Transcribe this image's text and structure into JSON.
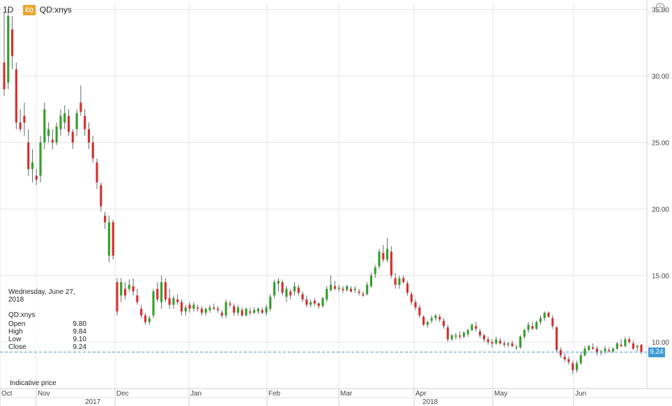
{
  "toolbar": {
    "interval": "1D",
    "badge": "EQ",
    "symbol": "QD:xnys",
    "clock_icon": "clock-icon"
  },
  "tooltip": {
    "date": "Wednesday, June 27, 2018",
    "symbol": "QD:xnys",
    "rows": [
      {
        "label": "Open",
        "value": "9.80"
      },
      {
        "label": "High",
        "value": "9.84"
      },
      {
        "label": "Low",
        "value": "9.10"
      },
      {
        "label": "Close",
        "value": "9.24"
      }
    ]
  },
  "footer_note": "Indicative price",
  "last_price_label": "9.24",
  "colors": {
    "up": "#33a02c",
    "down": "#d62f2f",
    "grid": "#e4e4e4",
    "price_line": "#3d9ad8"
  },
  "chart_data": {
    "type": "candlestick",
    "y_ticks": [
      "35.00",
      "30.00",
      "25.00",
      "20.00",
      "15.00",
      "10.00"
    ],
    "ylim": [
      6.5,
      35.5
    ],
    "x_ticks": [
      "Oct",
      "Nov",
      "Dec",
      "Jan",
      "Feb",
      "Mar",
      "Apr",
      "May",
      "Jun"
    ],
    "year_labels": [
      {
        "label": "2017",
        "after": "Nov"
      },
      {
        "label": "2018",
        "after": "Apr"
      }
    ],
    "last_close": 9.24,
    "candles": [
      [
        31.0,
        34.8,
        28.5,
        29.0
      ],
      [
        29.5,
        35.0,
        29.0,
        34.5
      ],
      [
        33.5,
        34.5,
        30.5,
        31.5
      ],
      [
        30.5,
        31.0,
        26.0,
        26.5
      ],
      [
        26.5,
        27.5,
        25.8,
        26.0
      ],
      [
        27.0,
        28.0,
        25.5,
        26.5
      ],
      [
        25.0,
        26.0,
        22.5,
        23.0
      ],
      [
        23.0,
        24.5,
        22.0,
        23.5
      ],
      [
        22.5,
        23.0,
        21.8,
        22.2
      ],
      [
        22.5,
        25.5,
        22.0,
        25.0
      ],
      [
        25.0,
        28.0,
        24.5,
        27.5
      ],
      [
        25.5,
        26.5,
        25.0,
        26.0
      ],
      [
        25.2,
        26.0,
        24.5,
        25.0
      ],
      [
        25.0,
        26.5,
        24.8,
        26.2
      ],
      [
        26.0,
        27.5,
        25.5,
        27.0
      ],
      [
        26.5,
        27.8,
        26.0,
        27.2
      ],
      [
        27.0,
        27.5,
        25.5,
        25.8
      ],
      [
        25.8,
        26.0,
        24.5,
        25.0
      ],
      [
        26.0,
        27.5,
        25.5,
        27.2
      ],
      [
        28.0,
        29.3,
        27.0,
        27.3
      ],
      [
        27.0,
        27.5,
        25.5,
        26.0
      ],
      [
        26.0,
        26.5,
        24.5,
        25.0
      ],
      [
        25.0,
        25.5,
        23.5,
        23.8
      ],
      [
        23.5,
        23.8,
        21.5,
        22.0
      ],
      [
        21.8,
        22.0,
        19.8,
        20.2
      ],
      [
        19.5,
        19.8,
        18.5,
        19.0
      ],
      [
        16.5,
        19.5,
        16.0,
        19.0
      ],
      [
        19.0,
        19.2,
        16.2,
        16.5
      ],
      [
        14.5,
        14.8,
        12.0,
        12.3
      ],
      [
        13.5,
        14.8,
        13.0,
        14.5
      ],
      [
        14.0,
        14.5,
        13.2,
        13.5
      ],
      [
        14.0,
        14.7,
        13.8,
        14.3
      ],
      [
        14.2,
        14.8,
        13.5,
        13.8
      ],
      [
        13.5,
        14.0,
        12.8,
        13.0
      ],
      [
        12.5,
        12.8,
        11.8,
        12.0
      ],
      [
        12.0,
        12.2,
        11.3,
        11.5
      ],
      [
        11.5,
        12.0,
        11.3,
        11.8
      ],
      [
        12.0,
        14.0,
        11.8,
        13.8
      ],
      [
        14.0,
        14.5,
        13.0,
        13.2
      ],
      [
        13.0,
        15.0,
        12.5,
        14.5
      ],
      [
        14.5,
        14.8,
        13.0,
        13.2
      ],
      [
        13.3,
        14.0,
        12.5,
        12.8
      ],
      [
        12.8,
        13.5,
        12.5,
        13.3
      ],
      [
        13.2,
        13.6,
        12.8,
        13.0
      ],
      [
        13.0,
        13.2,
        12.0,
        12.3
      ],
      [
        12.3,
        12.8,
        12.0,
        12.6
      ],
      [
        12.8,
        13.0,
        12.2,
        12.5
      ],
      [
        12.5,
        13.0,
        12.3,
        12.8
      ],
      [
        12.6,
        12.8,
        12.3,
        12.5
      ],
      [
        12.5,
        12.7,
        12.0,
        12.2
      ],
      [
        12.2,
        12.6,
        12.0,
        12.5
      ],
      [
        12.4,
        12.8,
        12.2,
        12.6
      ],
      [
        12.6,
        12.9,
        12.4,
        12.5
      ],
      [
        12.5,
        12.7,
        12.2,
        12.4
      ],
      [
        12.2,
        12.4,
        11.8,
        12.0
      ],
      [
        12.0,
        13.2,
        11.8,
        13.0
      ],
      [
        12.9,
        13.1,
        12.6,
        12.8
      ],
      [
        12.7,
        12.9,
        12.0,
        12.2
      ],
      [
        12.2,
        12.8,
        12.0,
        12.6
      ],
      [
        12.4,
        12.6,
        11.9,
        12.0
      ],
      [
        12.0,
        12.6,
        11.9,
        12.5
      ],
      [
        12.3,
        12.6,
        12.0,
        12.2
      ],
      [
        12.2,
        12.6,
        12.1,
        12.4
      ],
      [
        12.3,
        12.6,
        12.1,
        12.5
      ],
      [
        12.4,
        12.6,
        12.1,
        12.2
      ],
      [
        12.2,
        12.8,
        12.0,
        12.6
      ],
      [
        12.5,
        13.6,
        12.3,
        13.4
      ],
      [
        13.5,
        14.7,
        13.3,
        14.5
      ],
      [
        14.4,
        14.8,
        13.8,
        14.6
      ],
      [
        14.5,
        14.7,
        13.5,
        13.7
      ],
      [
        13.4,
        14.2,
        13.0,
        14.0
      ],
      [
        13.8,
        14.0,
        13.2,
        13.5
      ],
      [
        13.8,
        14.5,
        13.5,
        14.2
      ],
      [
        14.1,
        14.3,
        13.5,
        13.7
      ],
      [
        13.6,
        13.8,
        13.0,
        13.2
      ],
      [
        13.2,
        13.5,
        12.6,
        12.8
      ],
      [
        12.8,
        13.2,
        12.6,
        13.0
      ],
      [
        13.1,
        13.3,
        12.7,
        12.9
      ],
      [
        12.9,
        13.0,
        12.5,
        12.7
      ],
      [
        12.7,
        13.4,
        12.6,
        13.3
      ],
      [
        13.2,
        14.2,
        13.0,
        14.0
      ],
      [
        13.9,
        15.0,
        13.8,
        14.3
      ],
      [
        14.2,
        14.6,
        13.9,
        14.0
      ],
      [
        14.0,
        14.3,
        13.8,
        14.1
      ],
      [
        14.0,
        14.2,
        13.7,
        13.9
      ],
      [
        13.9,
        14.3,
        13.8,
        14.2
      ],
      [
        14.0,
        14.2,
        13.7,
        13.8
      ],
      [
        13.9,
        14.2,
        13.7,
        14.0
      ],
      [
        13.8,
        14.0,
        13.5,
        13.7
      ],
      [
        13.6,
        13.8,
        13.4,
        13.5
      ],
      [
        13.6,
        14.5,
        13.5,
        14.3
      ],
      [
        14.2,
        15.2,
        14.1,
        15.0
      ],
      [
        15.1,
        15.8,
        14.8,
        15.6
      ],
      [
        15.7,
        17.0,
        15.5,
        16.8
      ],
      [
        16.7,
        17.3,
        16.0,
        16.2
      ],
      [
        16.2,
        17.8,
        16.0,
        17.0
      ],
      [
        16.8,
        17.2,
        14.8,
        15.0
      ],
      [
        14.8,
        15.2,
        14.0,
        14.3
      ],
      [
        14.3,
        15.0,
        14.0,
        14.8
      ],
      [
        14.8,
        15.0,
        14.4,
        14.5
      ],
      [
        14.4,
        14.6,
        13.5,
        13.7
      ],
      [
        13.6,
        13.8,
        12.8,
        13.0
      ],
      [
        13.0,
        13.2,
        12.4,
        12.6
      ],
      [
        12.6,
        12.8,
        11.8,
        12.0
      ],
      [
        11.9,
        12.0,
        11.2,
        11.3
      ],
      [
        11.3,
        11.6,
        11.1,
        11.5
      ],
      [
        11.6,
        12.0,
        11.4,
        11.8
      ],
      [
        11.8,
        12.1,
        11.6,
        12.0
      ],
      [
        11.9,
        12.1,
        11.5,
        11.7
      ],
      [
        11.6,
        11.8,
        11.0,
        11.2
      ],
      [
        11.1,
        11.3,
        10.0,
        10.2
      ],
      [
        10.2,
        10.6,
        10.1,
        10.5
      ],
      [
        10.4,
        10.7,
        10.2,
        10.5
      ],
      [
        10.5,
        10.8,
        10.2,
        10.4
      ],
      [
        10.4,
        10.8,
        10.3,
        10.7
      ],
      [
        10.6,
        11.0,
        10.4,
        10.9
      ],
      [
        10.9,
        11.4,
        10.8,
        11.3
      ],
      [
        11.2,
        11.5,
        10.8,
        11.0
      ],
      [
        10.8,
        11.0,
        10.3,
        10.5
      ],
      [
        10.5,
        10.6,
        10.0,
        10.2
      ],
      [
        10.2,
        10.4,
        9.8,
        10.0
      ],
      [
        10.0,
        10.2,
        9.6,
        9.9
      ],
      [
        9.9,
        10.4,
        9.8,
        10.2
      ],
      [
        10.1,
        10.3,
        9.8,
        9.9
      ],
      [
        9.9,
        10.1,
        9.6,
        9.8
      ],
      [
        9.8,
        10.0,
        9.6,
        9.9
      ],
      [
        9.9,
        10.1,
        9.6,
        9.7
      ],
      [
        9.6,
        9.8,
        9.4,
        9.6
      ],
      [
        9.6,
        10.5,
        9.5,
        10.4
      ],
      [
        10.4,
        11.0,
        10.2,
        10.9
      ],
      [
        10.9,
        11.5,
        10.7,
        11.3
      ],
      [
        11.2,
        11.5,
        10.9,
        11.0
      ],
      [
        11.0,
        11.6,
        10.9,
        11.5
      ],
      [
        11.5,
        12.0,
        11.3,
        11.8
      ],
      [
        11.8,
        12.3,
        11.6,
        12.2
      ],
      [
        12.2,
        12.3,
        11.8,
        11.9
      ],
      [
        11.8,
        12.0,
        11.0,
        11.2
      ],
      [
        11.1,
        11.2,
        9.2,
        9.4
      ],
      [
        9.4,
        9.6,
        8.8,
        9.0
      ],
      [
        8.9,
        9.2,
        8.5,
        8.7
      ],
      [
        8.7,
        8.9,
        8.3,
        8.5
      ],
      [
        8.4,
        8.6,
        7.6,
        7.9
      ],
      [
        7.9,
        8.6,
        7.7,
        8.4
      ],
      [
        8.4,
        9.2,
        8.3,
        9.0
      ],
      [
        9.0,
        9.7,
        8.9,
        9.5
      ],
      [
        9.4,
        9.8,
        9.3,
        9.7
      ],
      [
        9.6,
        9.9,
        9.4,
        9.5
      ],
      [
        9.5,
        9.7,
        9.0,
        9.2
      ],
      [
        9.2,
        9.4,
        9.0,
        9.3
      ],
      [
        9.3,
        9.7,
        9.1,
        9.5
      ],
      [
        9.4,
        9.6,
        9.2,
        9.3
      ],
      [
        9.3,
        9.6,
        9.2,
        9.5
      ],
      [
        9.5,
        10.0,
        9.4,
        9.9
      ],
      [
        9.8,
        10.2,
        9.6,
        9.7
      ],
      [
        9.7,
        10.4,
        9.6,
        10.2
      ],
      [
        10.2,
        10.4,
        9.9,
        10.0
      ],
      [
        9.9,
        10.1,
        9.4,
        9.5
      ],
      [
        9.6,
        9.8,
        9.3,
        9.7
      ],
      [
        9.8,
        9.84,
        9.1,
        9.24
      ]
    ]
  }
}
